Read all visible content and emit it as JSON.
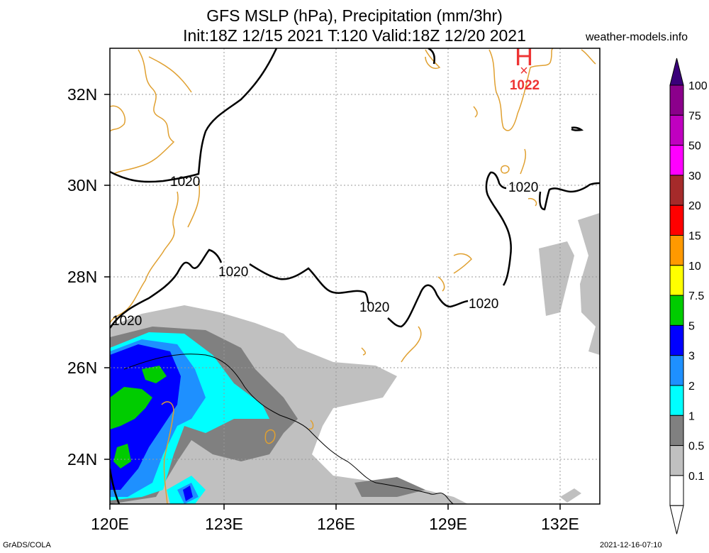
{
  "title": {
    "line1": "GFS MSLP (hPa), Precipitation (mm/3hr)",
    "line2": "Init:18Z 12/15 2021 T:120 Valid:18Z 12/20 2021"
  },
  "site_label": "weather-models.info",
  "footer": {
    "left": "GrADS/COLA",
    "right": "2021-12-16-07:10"
  },
  "map": {
    "lat_ticks": [
      "32N",
      "30N",
      "28N",
      "26N",
      "24N"
    ],
    "lon_ticks": [
      "120E",
      "123E",
      "126E",
      "129E",
      "132E"
    ],
    "isobar_labels": [
      "1020",
      "1020",
      "1020",
      "1020",
      "1020",
      "1020"
    ],
    "high": {
      "symbol": "H",
      "value": "1022",
      "marker": "×"
    }
  },
  "colorbar": {
    "labels": [
      "100",
      "75",
      "50",
      "30",
      "20",
      "15",
      "10",
      "7.5",
      "5",
      "3",
      "2",
      "1",
      "0.5",
      "0.1"
    ],
    "colors": [
      "#8b008b",
      "#c000c0",
      "#ff00ff",
      "#a52a2a",
      "#ff0000",
      "#ff9900",
      "#ffff00",
      "#00cc00",
      "#0000ff",
      "#1e90ff",
      "#00ffff",
      "#808080",
      "#c0c0c0",
      "#ffffff"
    ]
  }
}
